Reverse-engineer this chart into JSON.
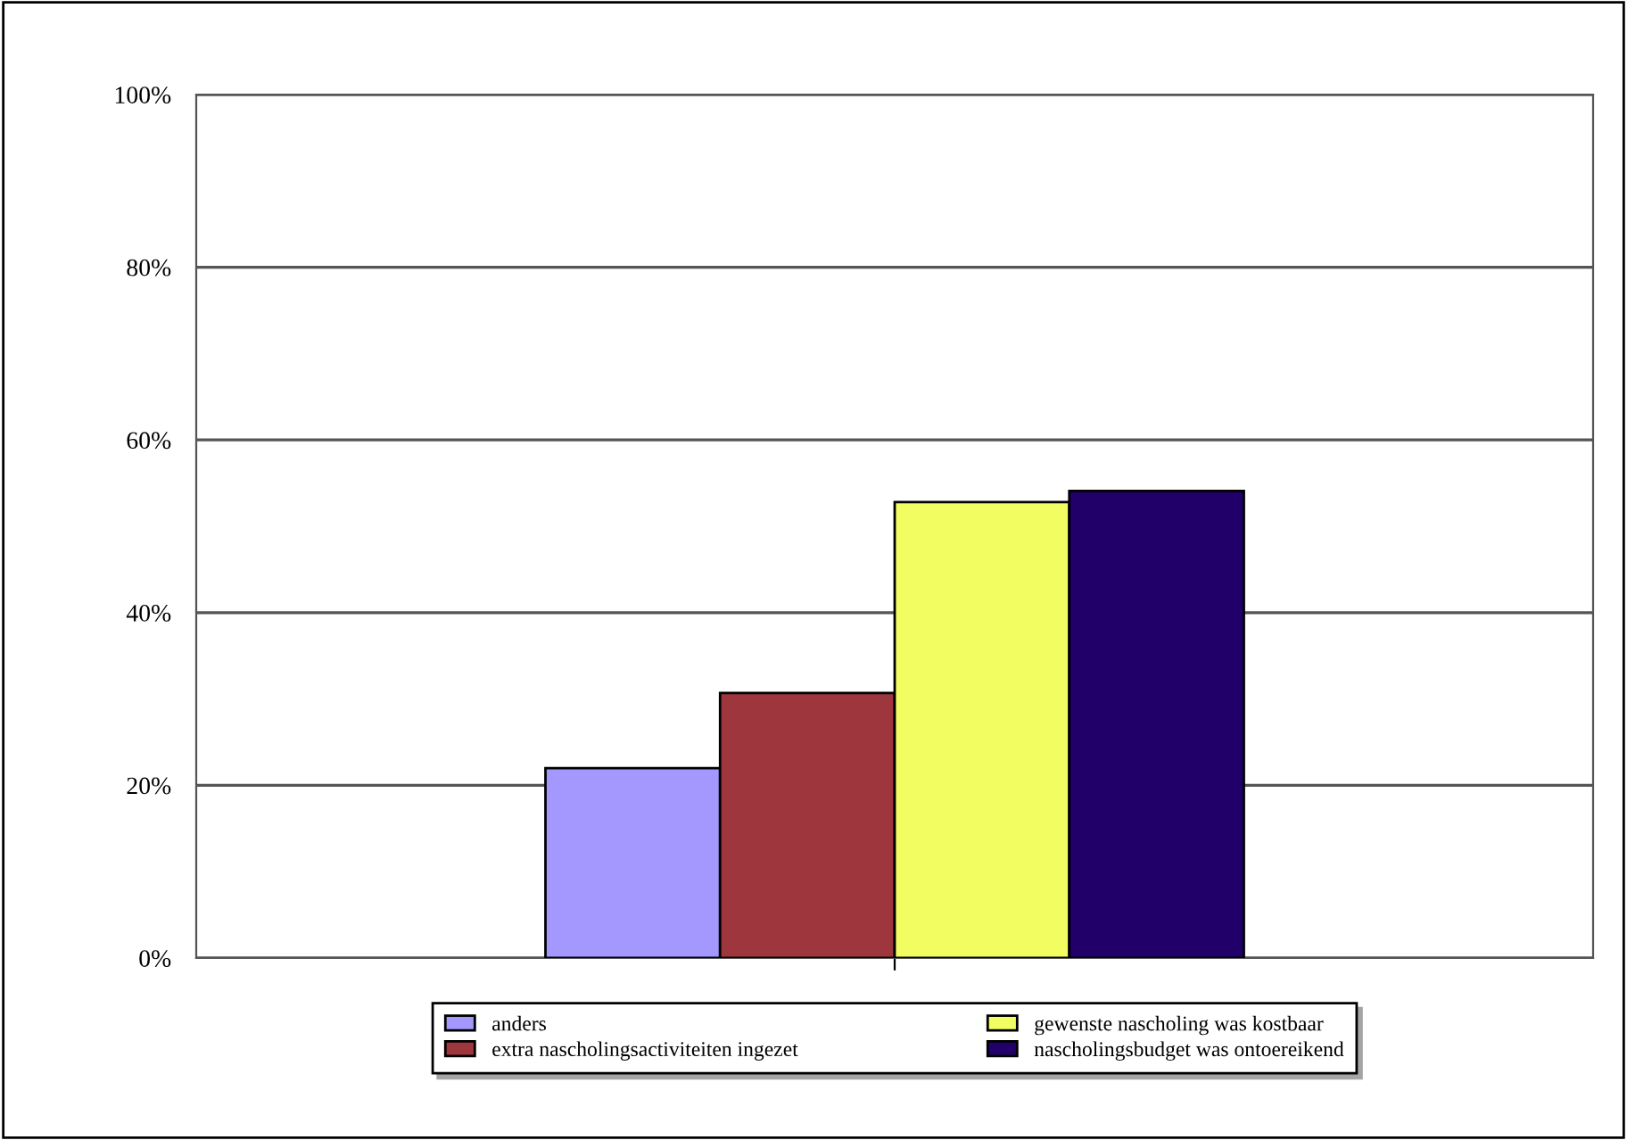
{
  "chart_data": {
    "type": "bar",
    "categories": [
      null
    ],
    "series": [
      {
        "name": "anders",
        "color": "#a497fd",
        "values": [
          22.0
        ]
      },
      {
        "name": "extra nascholingsactiviteiten ingezet",
        "color": "#9e373d",
        "values": [
          30.7
        ]
      },
      {
        "name": "gewenste nascholing was kostbaar",
        "color": "#f2fd62",
        "values": [
          52.8
        ]
      },
      {
        "name": "nascholingsbudget was ontoereikend",
        "color": "#22006a",
        "values": [
          54.1
        ]
      }
    ],
    "ylim": [
      0,
      100
    ],
    "yticks": [
      {
        "value": 0,
        "label": "0%"
      },
      {
        "value": 20,
        "label": "20%"
      },
      {
        "value": 40,
        "label": "40%"
      },
      {
        "value": 60,
        "label": "60%"
      },
      {
        "value": 80,
        "label": "80%"
      },
      {
        "value": 100,
        "label": "100%"
      }
    ],
    "grid": "y",
    "legend": "bottom"
  }
}
